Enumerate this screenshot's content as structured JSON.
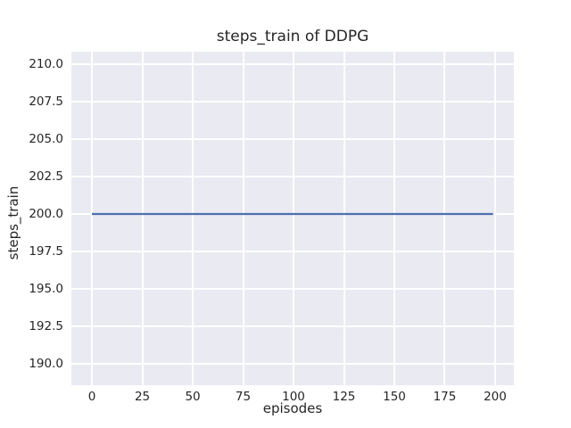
{
  "chart_data": {
    "type": "line",
    "title": "steps_train of DDPG",
    "xlabel": "episodes",
    "ylabel": "steps_train",
    "xlim": [
      -10.2,
      209.3
    ],
    "ylim": [
      188.57,
      210.83
    ],
    "xticks": [
      0,
      25,
      50,
      75,
      100,
      125,
      150,
      175,
      200
    ],
    "xtick_labels": [
      "0",
      "25",
      "50",
      "75",
      "100",
      "125",
      "150",
      "175",
      "200"
    ],
    "yticks": [
      190.0,
      192.5,
      195.0,
      197.5,
      200.0,
      202.5,
      205.0,
      207.5,
      210.0
    ],
    "ytick_labels": [
      "190.0",
      "192.5",
      "195.0",
      "197.5",
      "200.0",
      "202.5",
      "205.0",
      "207.5",
      "210.0"
    ],
    "grid": true,
    "legend_visible": false,
    "plot_background": "#EAEAF2",
    "grid_color": "#FFFFFF",
    "series": [
      {
        "name": "steps_train",
        "color": "#4C72B0",
        "x": [
          0,
          199
        ],
        "y": [
          200,
          200
        ]
      }
    ]
  }
}
